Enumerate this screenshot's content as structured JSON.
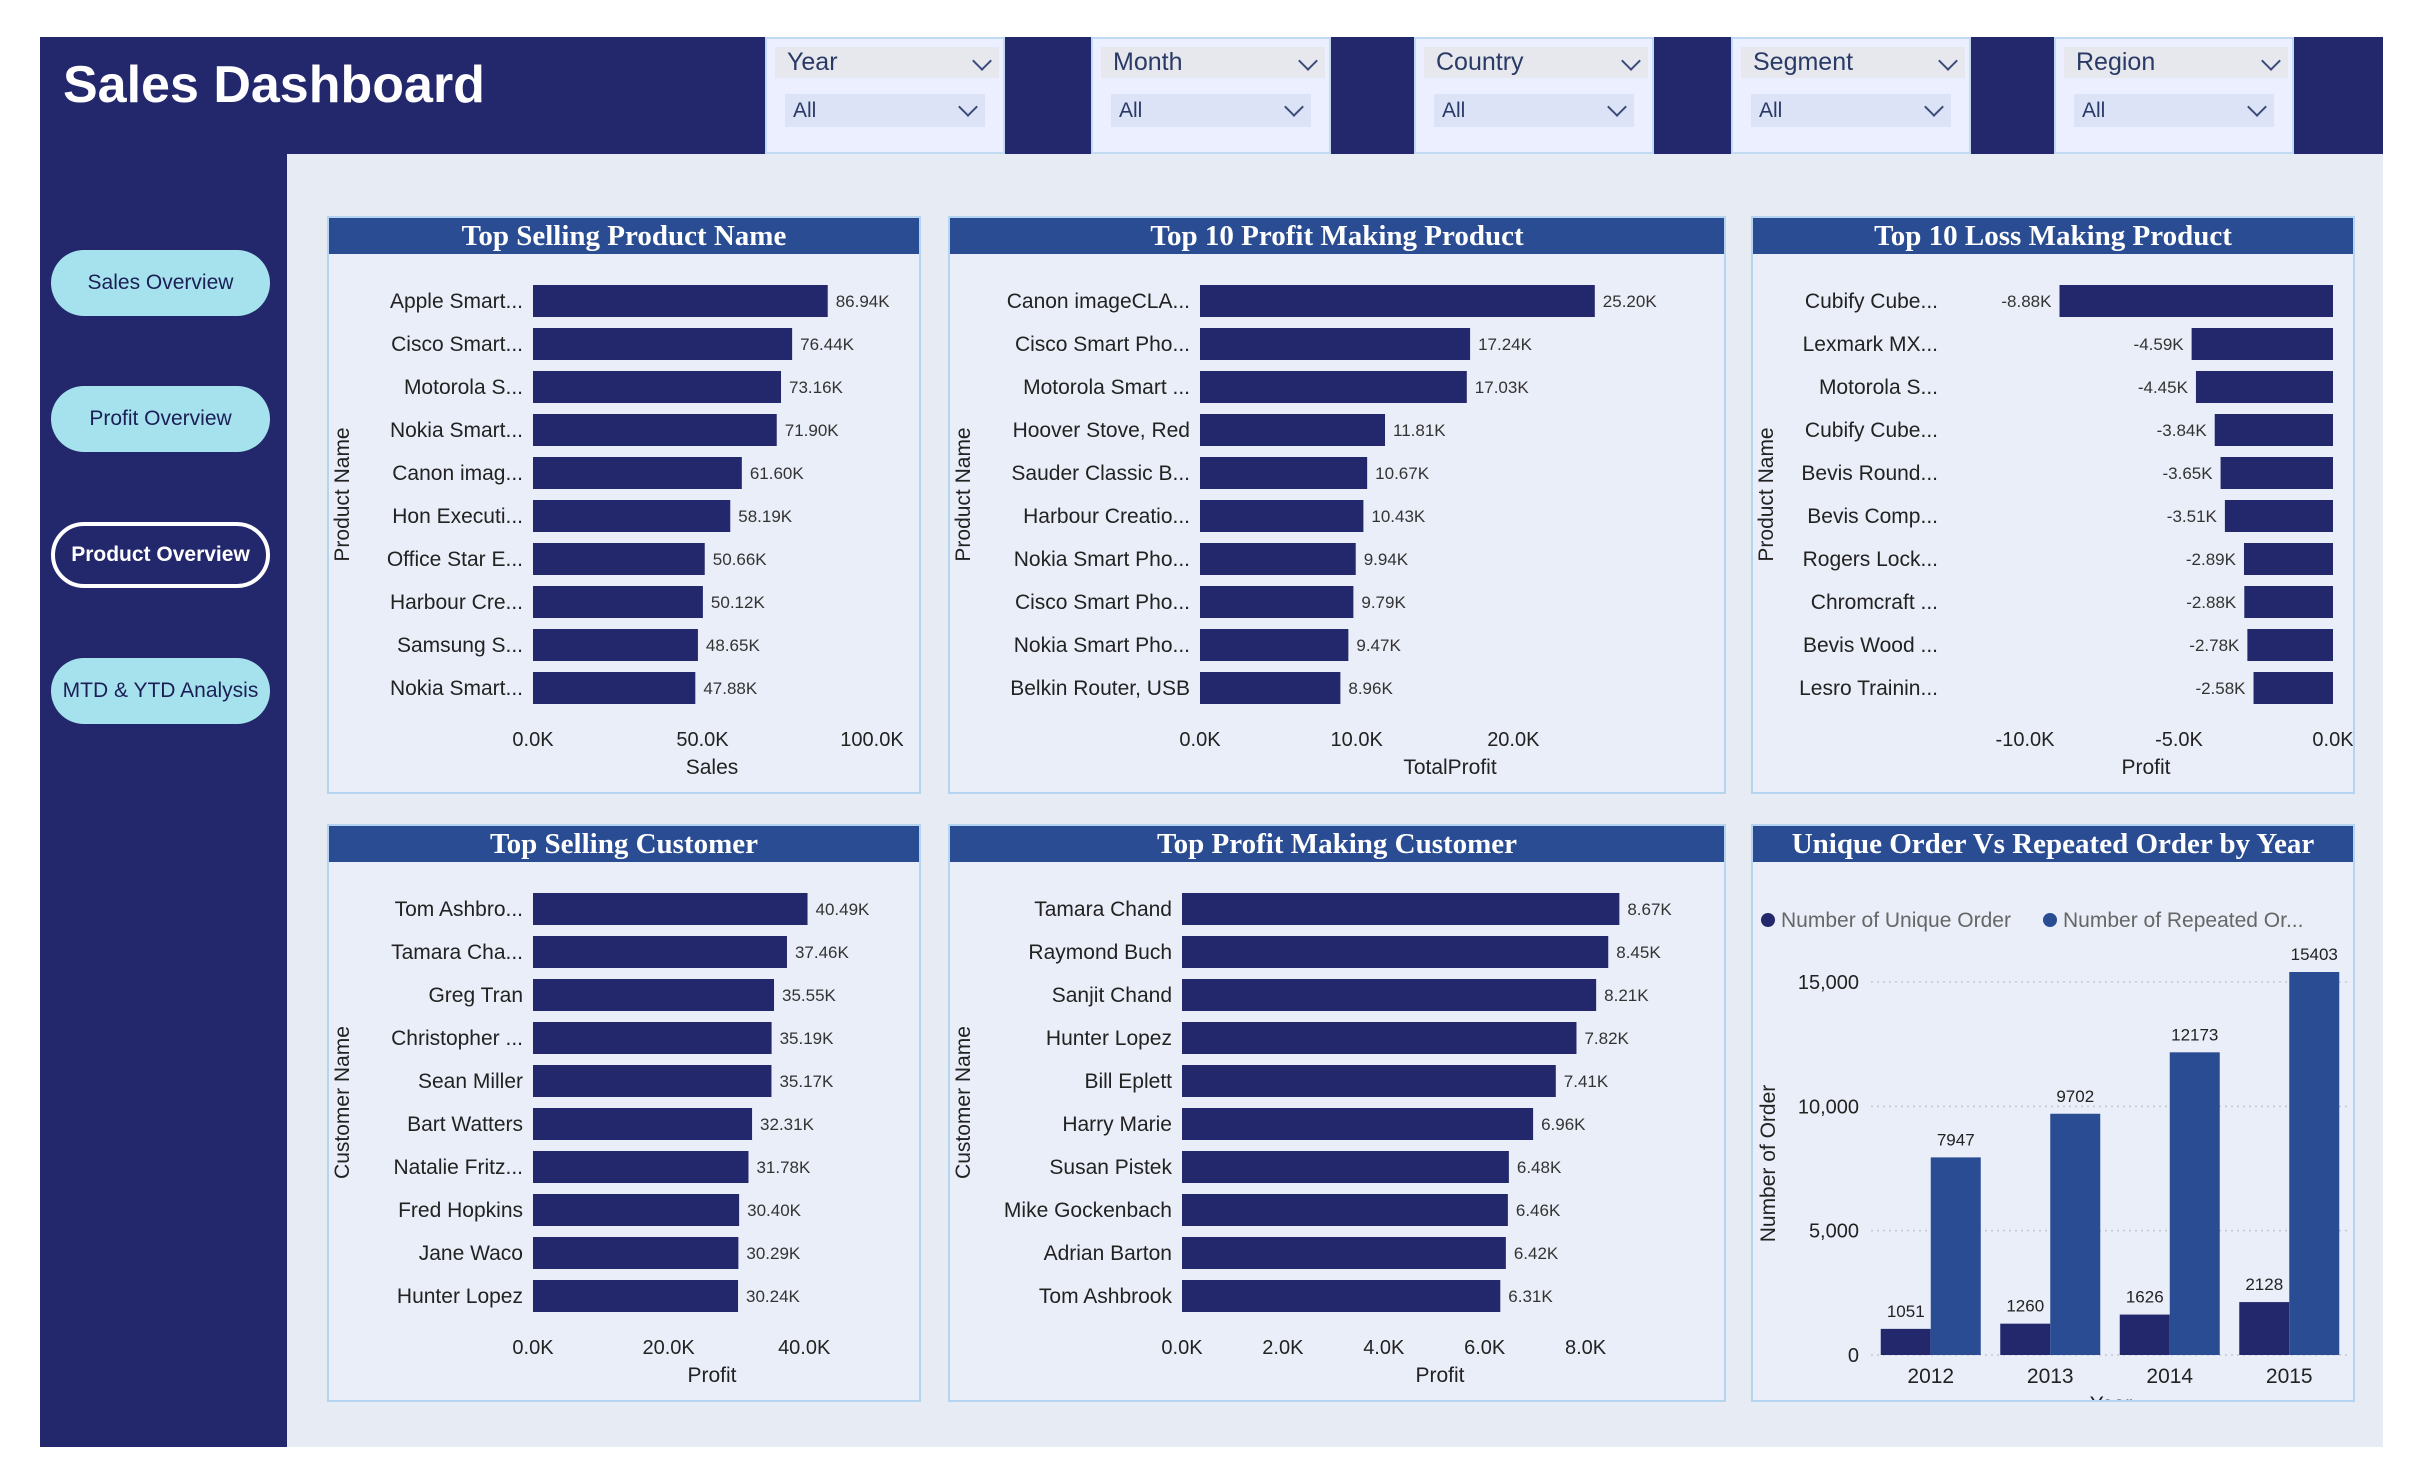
{
  "header": {
    "title": "Sales Dashboard"
  },
  "slicers": [
    {
      "label": "Year",
      "value": "All"
    },
    {
      "label": "Month",
      "value": "All"
    },
    {
      "label": "Country",
      "value": "All"
    },
    {
      "label": "Segment",
      "value": "All"
    },
    {
      "label": "Region",
      "value": "All"
    }
  ],
  "nav": {
    "items": [
      {
        "label": "Sales Overview"
      },
      {
        "label": "Profit Overview"
      },
      {
        "label": "Product Overview"
      },
      {
        "label": "MTD & YTD Analysis"
      }
    ],
    "active_index": 2
  },
  "colors": {
    "bar": "#23286c",
    "header": "#2a4c93",
    "unique": "#23286c",
    "repeated": "#2a4c93"
  },
  "chart_data": [
    {
      "type": "bar",
      "title": "Top Selling Product Name",
      "xlabel": "Sales",
      "ylabel": "Product Name",
      "categories": [
        "Apple Smart...",
        "Cisco Smart...",
        "Motorola S...",
        "Nokia Smart...",
        "Canon imag...",
        "Hon Executi...",
        "Office Star E...",
        "Harbour Cre...",
        "Samsung S...",
        "Nokia Smart..."
      ],
      "values": [
        86940,
        76440,
        73160,
        71900,
        61600,
        58190,
        50660,
        50120,
        48650,
        47880
      ],
      "value_labels": [
        "86.94K",
        "76.44K",
        "73.16K",
        "71.90K",
        "61.60K",
        "58.19K",
        "50.66K",
        "50.12K",
        "48.65K",
        "47.88K"
      ],
      "xlim": [
        0,
        100000
      ],
      "xticks": [
        0,
        50000,
        100000
      ],
      "xtick_labels": [
        "0.0K",
        "50.0K",
        "100.0K"
      ]
    },
    {
      "type": "bar",
      "title": "Top 10 Profit Making Product",
      "xlabel": "TotalProfit",
      "ylabel": "Product Name",
      "categories": [
        "Canon imageCLA...",
        "Cisco Smart Pho...",
        "Motorola Smart ...",
        "Hoover Stove, Red",
        "Sauder Classic B...",
        "Harbour Creatio...",
        "Nokia Smart Pho...",
        "Cisco Smart Pho...",
        "Nokia Smart Pho...",
        "Belkin Router, USB"
      ],
      "values": [
        25200,
        17240,
        17030,
        11810,
        10670,
        10430,
        9940,
        9790,
        9470,
        8960
      ],
      "value_labels": [
        "25.20K",
        "17.24K",
        "17.03K",
        "11.81K",
        "10.67K",
        "10.43K",
        "9.94K",
        "9.79K",
        "9.47K",
        "8.96K"
      ],
      "xlim": [
        0,
        30000
      ],
      "xticks": [
        0,
        10000,
        20000
      ],
      "xtick_labels": [
        "0.0K",
        "10.0K",
        "20.0K"
      ]
    },
    {
      "type": "bar",
      "title": "Top 10 Loss Making Product",
      "xlabel": "Profit",
      "ylabel": "Product Name",
      "categories": [
        "Cubify Cube...",
        "Lexmark MX...",
        "Motorola S...",
        "Cubify Cube...",
        "Bevis Round...",
        "Bevis Comp...",
        "Rogers Lock...",
        "Chromcraft ...",
        "Bevis Wood ...",
        "Lesro Trainin..."
      ],
      "values": [
        -8880,
        -4590,
        -4450,
        -3840,
        -3650,
        -3510,
        -2890,
        -2880,
        -2780,
        -2580
      ],
      "value_labels": [
        "-8.88K",
        "-4.59K",
        "-4.45K",
        "-3.84K",
        "-3.65K",
        "-3.51K",
        "-2.89K",
        "-2.88K",
        "-2.78K",
        "-2.58K"
      ],
      "xlim": [
        -12500,
        0
      ],
      "xticks": [
        -10000,
        -5000,
        0
      ],
      "xtick_labels": [
        "-10.0K",
        "-5.0K",
        "0.0K"
      ]
    },
    {
      "type": "bar",
      "title": "Top Selling Customer",
      "xlabel": "Profit",
      "ylabel": "Customer Name",
      "categories": [
        "Tom Ashbro...",
        "Tamara Cha...",
        "Greg Tran",
        "Christopher ...",
        "Sean Miller",
        "Bart Watters",
        "Natalie Fritz...",
        "Fred Hopkins",
        "Jane Waco",
        "Hunter Lopez"
      ],
      "values": [
        40490,
        37460,
        35550,
        35190,
        35170,
        32310,
        31780,
        30400,
        30290,
        30240
      ],
      "value_labels": [
        "40.49K",
        "37.46K",
        "35.55K",
        "35.19K",
        "35.17K",
        "32.31K",
        "31.78K",
        "30.40K",
        "30.29K",
        "30.24K"
      ],
      "xlim": [
        0,
        50000
      ],
      "xticks": [
        0,
        20000,
        40000
      ],
      "xtick_labels": [
        "0.0K",
        "20.0K",
        "40.0K"
      ]
    },
    {
      "type": "bar",
      "title": "Top Profit Making Customer",
      "xlabel": "Profit",
      "ylabel": "Customer Name",
      "categories": [
        "Tamara Chand",
        "Raymond Buch",
        "Sanjit Chand",
        "Hunter Lopez",
        "Bill Eplett",
        "Harry Marie",
        "Susan Pistek",
        "Mike Gockenbach",
        "Adrian Barton",
        "Tom Ashbrook"
      ],
      "values": [
        8670,
        8450,
        8210,
        7820,
        7410,
        6960,
        6480,
        6460,
        6420,
        6310
      ],
      "value_labels": [
        "8.67K",
        "8.45K",
        "8.21K",
        "7.82K",
        "7.41K",
        "6.96K",
        "6.48K",
        "6.46K",
        "6.42K",
        "6.31K"
      ],
      "xlim": [
        0,
        9000
      ],
      "xticks": [
        0,
        2000,
        4000,
        6000,
        8000
      ],
      "xtick_labels": [
        "0.0K",
        "2.0K",
        "4.0K",
        "6.0K",
        "8.0K"
      ]
    },
    {
      "type": "bar",
      "title": "Unique Order Vs Repeated Order by Year",
      "xlabel": "Year",
      "ylabel": "Number of Order",
      "categories": [
        "2012",
        "2013",
        "2014",
        "2015"
      ],
      "series": [
        {
          "name": "Number of Unique Order",
          "values": [
            1051,
            1260,
            1626,
            2128
          ]
        },
        {
          "name": "Number of Repeated Or...",
          "values": [
            7947,
            9702,
            12173,
            15403
          ]
        }
      ],
      "ylim": [
        0,
        15403
      ],
      "yticks": [
        0,
        5000,
        10000,
        15000
      ],
      "ytick_labels": [
        "0",
        "5,000",
        "10,000",
        "15,000"
      ],
      "legend": "top-left",
      "grid": true
    }
  ]
}
